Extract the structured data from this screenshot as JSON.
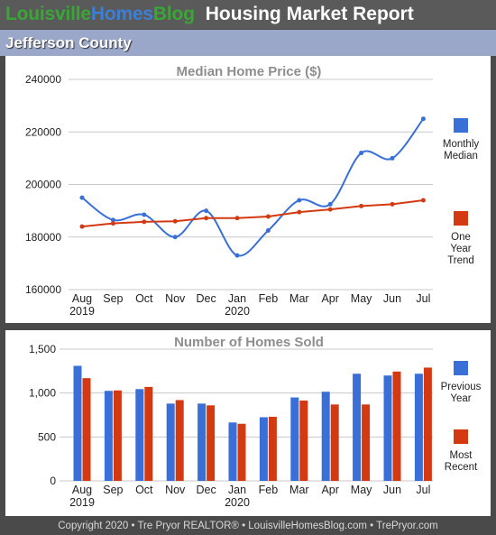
{
  "header": {
    "brand_part1": "Louisville",
    "brand_part2": "Homes",
    "brand_part3": "Blog",
    "title": "Housing Market Report"
  },
  "county": "Jefferson County",
  "footer": "Copyright 2020 • Tre Pryor REALTOR® • LouisvilleHomesBlog.com • TrePryor.com",
  "chart_data": [
    {
      "type": "line",
      "title": "Median Home Price ($)",
      "categories": [
        "Aug",
        "Sep",
        "Oct",
        "Nov",
        "Dec",
        "Jan",
        "Feb",
        "Mar",
        "Apr",
        "May",
        "Jun",
        "Jul"
      ],
      "year_labels": [
        {
          "index": 0,
          "text": "2019"
        },
        {
          "index": 5,
          "text": "2020"
        }
      ],
      "yticks": [
        "160000",
        "180000",
        "200000",
        "220000",
        "240000"
      ],
      "ylim": [
        160000,
        240000
      ],
      "grid": true,
      "legend_position": "right",
      "series": [
        {
          "name": "Monthly Median",
          "color": "#3a6fd8",
          "smooth": true,
          "values": [
            195000,
            186500,
            188500,
            180000,
            190000,
            173000,
            182500,
            194000,
            192500,
            212000,
            210000,
            225000
          ]
        },
        {
          "name": "One Year Trend",
          "color": "#d43a12",
          "smooth": false,
          "values": [
            184000,
            185200,
            185800,
            186000,
            187200,
            187200,
            187800,
            189500,
            190500,
            191800,
            192500,
            194000
          ]
        }
      ]
    },
    {
      "type": "bar",
      "title": "Number of Homes Sold",
      "categories": [
        "Aug",
        "Sep",
        "Oct",
        "Nov",
        "Dec",
        "Jan",
        "Feb",
        "Mar",
        "Apr",
        "May",
        "Jun",
        "Jul"
      ],
      "year_labels": [
        {
          "index": 0,
          "text": "2019"
        },
        {
          "index": 5,
          "text": "2020"
        }
      ],
      "yticks": [
        "0",
        "500",
        "1,000",
        "1,500"
      ],
      "ylim": [
        0,
        1500
      ],
      "grid": true,
      "legend_position": "right",
      "series": [
        {
          "name": "Previous Year",
          "color": "#3a6fd8",
          "values": [
            1310,
            1025,
            1045,
            880,
            880,
            665,
            725,
            950,
            1015,
            1220,
            1200,
            1220
          ]
        },
        {
          "name": "Most Recent",
          "color": "#d43a12",
          "values": [
            1170,
            1030,
            1070,
            920,
            860,
            650,
            730,
            915,
            870,
            870,
            1245,
            1290
          ]
        }
      ]
    }
  ]
}
